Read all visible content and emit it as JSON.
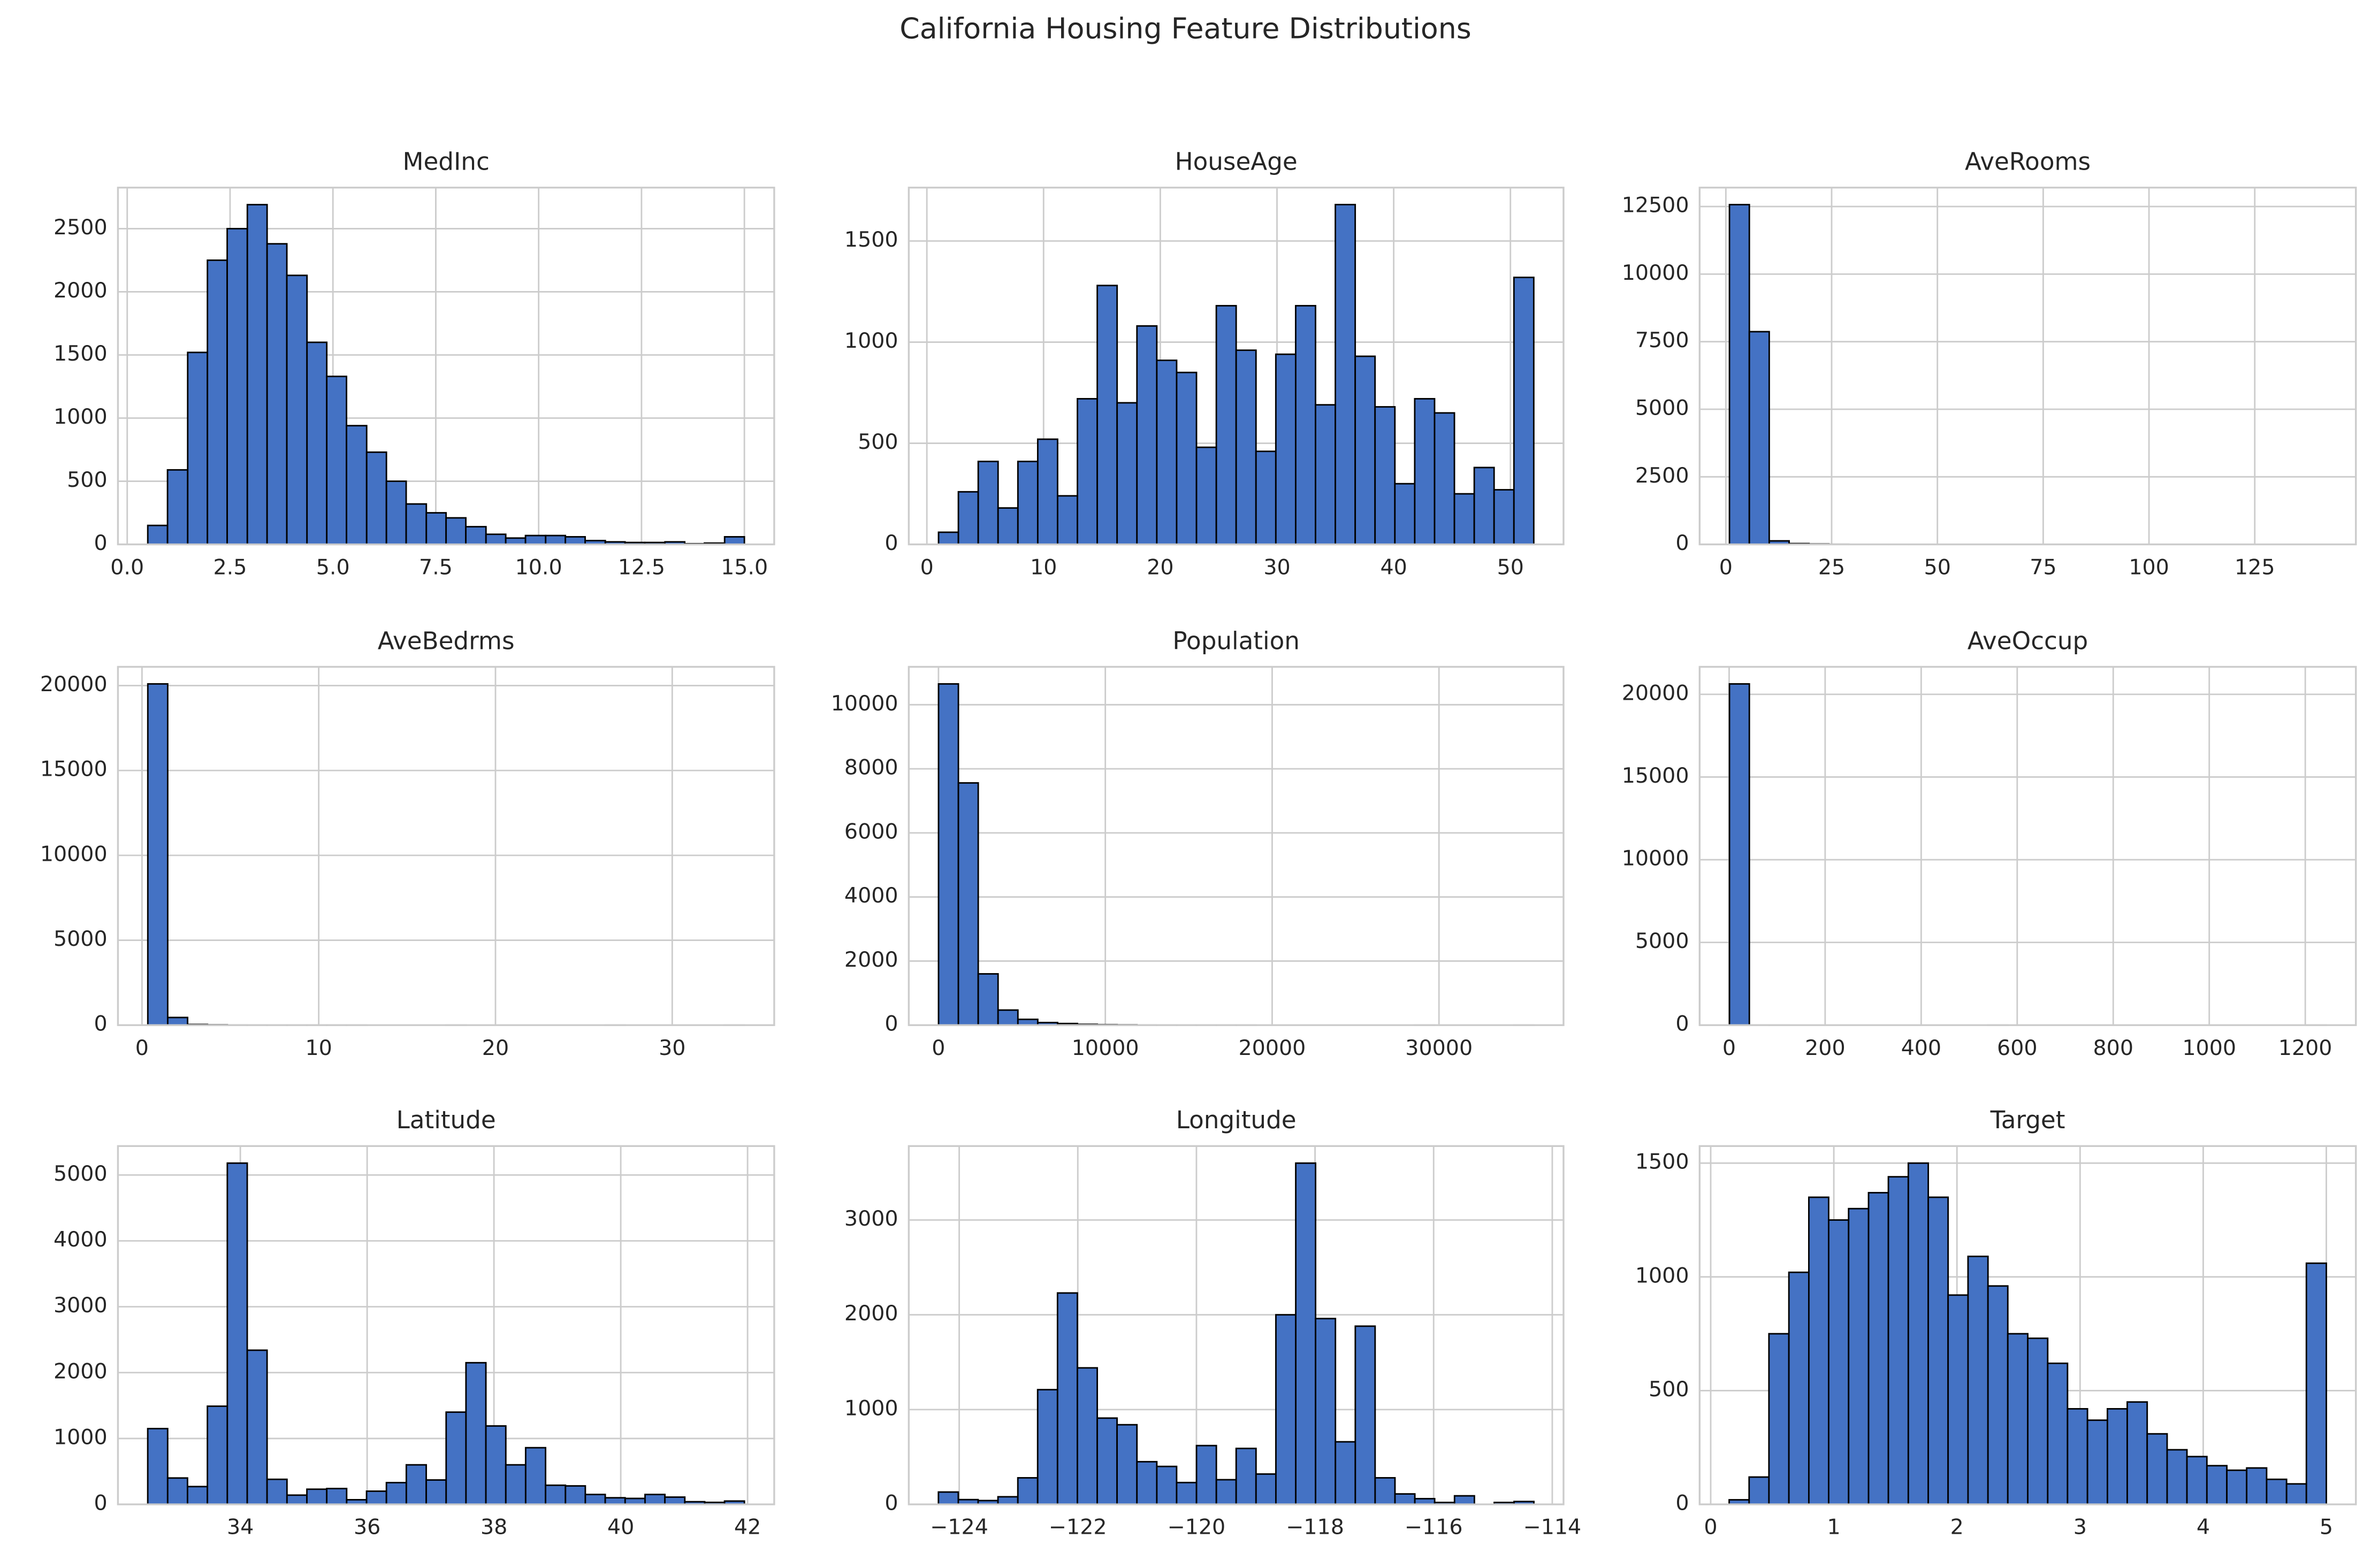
{
  "title": "California Housing Feature Distributions",
  "chart_data": [
    {
      "type": "histogram",
      "title": "MedInc",
      "color": "#4472c4",
      "grid": true,
      "bins": [
        0.5,
        0.98,
        1.47,
        1.95,
        2.43,
        2.92,
        3.4,
        3.88,
        4.37,
        4.85,
        5.33,
        5.82,
        6.3,
        6.78,
        7.27,
        7.75,
        8.23,
        8.72,
        9.2,
        9.68,
        10.17,
        10.65,
        11.13,
        11.62,
        12.1,
        12.58,
        13.07,
        13.55,
        14.03,
        14.52,
        15.0
      ],
      "counts": [
        150,
        590,
        1520,
        2250,
        2500,
        2690,
        2380,
        2130,
        1600,
        1330,
        940,
        730,
        500,
        320,
        250,
        210,
        140,
        80,
        50,
        70,
        70,
        60,
        30,
        20,
        15,
        15,
        20,
        5,
        10,
        60
      ],
      "xlim": [
        -0.225,
        15.725
      ],
      "ylim": [
        0,
        2825
      ],
      "xticks": [
        {
          "value": 0,
          "label": "0.0"
        },
        2.5,
        {
          "value": 5,
          "label": "5.0"
        },
        7.5,
        {
          "value": 10,
          "label": "10.0"
        },
        12.5,
        {
          "value": 15,
          "label": "15.0"
        }
      ],
      "yticks": [
        0,
        500,
        1000,
        1500,
        2000,
        2500
      ]
    },
    {
      "type": "histogram",
      "title": "HouseAge",
      "color": "#4472c4",
      "grid": true,
      "bins": [
        1,
        2.7,
        4.4,
        6.1,
        7.8,
        9.5,
        11.2,
        12.9,
        14.6,
        16.3,
        18,
        19.7,
        21.4,
        23.1,
        24.8,
        26.5,
        28.2,
        29.9,
        31.6,
        33.3,
        35,
        36.7,
        38.4,
        40.1,
        41.8,
        43.5,
        45.2,
        46.9,
        48.6,
        50.3,
        52
      ],
      "counts": [
        60,
        260,
        410,
        180,
        410,
        520,
        240,
        720,
        1280,
        700,
        1080,
        910,
        850,
        480,
        1180,
        960,
        460,
        940,
        1180,
        690,
        1680,
        930,
        680,
        300,
        720,
        650,
        250,
        380,
        270,
        1320
      ],
      "xlim": [
        -1.55,
        54.55
      ],
      "ylim": [
        0,
        1764
      ],
      "xticks": [
        0,
        10,
        20,
        30,
        40,
        50
      ],
      "yticks": [
        0,
        500,
        1000,
        1500
      ]
    },
    {
      "type": "histogram",
      "title": "AveRooms",
      "color": "#4472c4",
      "grid": true,
      "bins": [
        0.85,
        5.55,
        10.25,
        14.95,
        19.65,
        24.35,
        29.05,
        33.75,
        38.45,
        43.15,
        47.85,
        52.55,
        57.25,
        61.95,
        66.65,
        71.35,
        76.05,
        80.75,
        85.45,
        90.15,
        94.85,
        99.55,
        104.25,
        108.95,
        113.65,
        118.35,
        123.05,
        127.75,
        132.45,
        137.15,
        141.85
      ],
      "counts": [
        12570,
        7870,
        130,
        30,
        15,
        5,
        3,
        2,
        2,
        1,
        1,
        0,
        1,
        0,
        0,
        0,
        0,
        0,
        0,
        0,
        0,
        0,
        0,
        0,
        0,
        0,
        0,
        0,
        0,
        1
      ],
      "xlim": [
        -6.2,
        148.9
      ],
      "ylim": [
        0,
        13200
      ],
      "xticks": [
        0,
        25,
        50,
        75,
        100,
        125
      ],
      "yticks": [
        0,
        2500,
        5000,
        7500,
        10000,
        12500
      ]
    },
    {
      "type": "histogram",
      "title": "AveBedrms",
      "color": "#4472c4",
      "grid": true,
      "bins": [
        0.33,
        1.455,
        2.58,
        3.705,
        4.83,
        5.955,
        7.08,
        8.205,
        9.33,
        10.455,
        11.58,
        12.705,
        13.83,
        14.955,
        16.08,
        17.205,
        18.33,
        19.455,
        20.58,
        21.705,
        22.83,
        23.955,
        25.08,
        26.205,
        27.33,
        28.455,
        29.58,
        30.705,
        31.83,
        32.955,
        34.08
      ],
      "counts": [
        20100,
        450,
        40,
        20,
        10,
        5,
        3,
        2,
        1,
        1,
        1,
        0,
        0,
        0,
        0,
        1,
        0,
        0,
        0,
        0,
        0,
        0,
        0,
        1,
        0,
        0,
        0,
        0,
        0,
        1
      ],
      "xlim": [
        -1.36,
        35.77
      ],
      "ylim": [
        0,
        21105
      ],
      "xticks": [
        0,
        10,
        20,
        30
      ],
      "yticks": [
        0,
        5000,
        10000,
        15000,
        20000
      ]
    },
    {
      "type": "histogram",
      "title": "Population",
      "color": "#4472c4",
      "grid": true,
      "bins": [
        3,
        1192.3,
        2381.6,
        3570.9,
        4760.2,
        5949.5,
        7138.8,
        8328.1,
        9517.4,
        10706.7,
        11896,
        13085.3,
        14274.6,
        15463.9,
        16653.2,
        17842.5,
        19031.8,
        20221.1,
        21410.4,
        22599.7,
        23789,
        24978.3,
        26167.6,
        27356.9,
        28546.2,
        29735.5,
        30924.8,
        32114.1,
        33303.4,
        34492.7,
        35682
      ],
      "counts": [
        10650,
        7560,
        1600,
        470,
        180,
        80,
        50,
        25,
        15,
        10,
        5,
        3,
        2,
        1,
        1,
        1,
        0,
        0,
        0,
        0,
        0,
        0,
        0,
        0,
        1,
        0,
        0,
        0,
        0,
        1
      ],
      "xlim": [
        -1781,
        37466
      ],
      "ylim": [
        0,
        11183
      ],
      "xticks": [
        0,
        10000,
        20000,
        30000
      ],
      "yticks": [
        0,
        2000,
        4000,
        6000,
        8000,
        10000
      ]
    },
    {
      "type": "histogram",
      "title": "AveOccup",
      "color": "#4472c4",
      "grid": true,
      "bins": [
        0.69,
        42.11,
        83.53,
        124.95,
        166.37,
        207.79,
        249.21,
        290.63,
        332.05,
        373.47,
        414.89,
        456.31,
        497.73,
        539.15,
        580.57,
        621.99,
        663.41,
        704.83,
        746.25,
        787.67,
        829.09,
        870.51,
        911.93,
        953.35,
        994.77,
        1036.19,
        1077.61,
        1119.03,
        1160.45,
        1201.87,
        1243.29
      ],
      "counts": [
        20630,
        5,
        1,
        0,
        0,
        0,
        0,
        0,
        0,
        0,
        0,
        0,
        0,
        1,
        0,
        0,
        0,
        0,
        0,
        0,
        0,
        0,
        0,
        0,
        0,
        0,
        0,
        0,
        0,
        1
      ],
      "xlim": [
        -61.44,
        1305.4
      ],
      "ylim": [
        0,
        21662
      ],
      "xticks": [
        0,
        200,
        400,
        600,
        800,
        1000,
        1200
      ],
      "yticks": [
        0,
        5000,
        10000,
        15000,
        20000
      ]
    },
    {
      "type": "histogram",
      "title": "Latitude",
      "color": "#4472c4",
      "grid": true,
      "bins": [
        32.54,
        32.854,
        33.167,
        33.481,
        33.795,
        34.109,
        34.422,
        34.736,
        35.05,
        35.363,
        35.677,
        35.991,
        36.304,
        36.618,
        36.932,
        37.246,
        37.559,
        37.873,
        38.187,
        38.5,
        38.814,
        39.128,
        39.441,
        39.755,
        40.069,
        40.383,
        40.696,
        41.01,
        41.324,
        41.637,
        41.95
      ],
      "counts": [
        1150,
        400,
        270,
        1490,
        5180,
        2340,
        380,
        140,
        230,
        240,
        70,
        200,
        330,
        600,
        370,
        1400,
        2150,
        1190,
        600,
        860,
        290,
        280,
        150,
        100,
        90,
        150,
        110,
        40,
        30,
        50
      ],
      "xlim": [
        32.07,
        42.42
      ],
      "ylim": [
        0,
        5439
      ],
      "xticks": [
        34,
        36,
        38,
        40,
        42
      ],
      "yticks": [
        0,
        1000,
        2000,
        3000,
        4000,
        5000
      ]
    },
    {
      "type": "histogram",
      "title": "Longitude",
      "color": "#4472c4",
      "grid": true,
      "bins": [
        -124.35,
        -124.015,
        -123.681,
        -123.346,
        -123.011,
        -122.677,
        -122.342,
        -122.007,
        -121.672,
        -121.338,
        -121.003,
        -120.668,
        -120.334,
        -119.999,
        -119.664,
        -119.33,
        -118.995,
        -118.66,
        -118.325,
        -117.991,
        -117.656,
        -117.321,
        -116.987,
        -116.652,
        -116.317,
        -115.983,
        -115.648,
        -115.313,
        -114.978,
        -114.644,
        -114.31
      ],
      "counts": [
        130,
        50,
        40,
        80,
        280,
        1210,
        2230,
        1440,
        910,
        840,
        450,
        400,
        230,
        620,
        260,
        590,
        320,
        2000,
        3600,
        1960,
        660,
        1880,
        280,
        110,
        60,
        20,
        90,
        0,
        20,
        30
      ],
      "xlim": [
        -124.85,
        -113.81
      ],
      "ylim": [
        0,
        3780
      ],
      "xticks": [
        {
          "value": -124,
          "label": "−124"
        },
        {
          "value": -122,
          "label": "−122"
        },
        {
          "value": -120,
          "label": "−120"
        },
        {
          "value": -118,
          "label": "−118"
        },
        {
          "value": -116,
          "label": "−116"
        },
        {
          "value": -114,
          "label": "−114"
        }
      ],
      "yticks": [
        0,
        1000,
        2000,
        3000
      ]
    },
    {
      "type": "histogram",
      "title": "Target",
      "color": "#4472c4",
      "grid": true,
      "bins": [
        0.15,
        0.312,
        0.473,
        0.635,
        0.797,
        0.958,
        1.12,
        1.282,
        1.443,
        1.605,
        1.767,
        1.928,
        2.09,
        2.252,
        2.413,
        2.575,
        2.737,
        2.898,
        3.06,
        3.222,
        3.383,
        3.545,
        3.707,
        3.868,
        4.03,
        4.192,
        4.353,
        4.515,
        4.677,
        4.838,
        5.0
      ],
      "counts": [
        20,
        120,
        750,
        1020,
        1350,
        1250,
        1300,
        1370,
        1440,
        1500,
        1350,
        920,
        1090,
        960,
        750,
        730,
        620,
        420,
        370,
        420,
        450,
        310,
        240,
        210,
        170,
        150,
        160,
        110,
        90,
        1060
      ],
      "xlim": [
        -0.09,
        5.24
      ],
      "ylim": [
        0,
        1575
      ],
      "xticks": [
        0,
        1,
        2,
        3,
        4,
        5
      ],
      "yticks": [
        0,
        500,
        1000,
        1500
      ]
    }
  ]
}
